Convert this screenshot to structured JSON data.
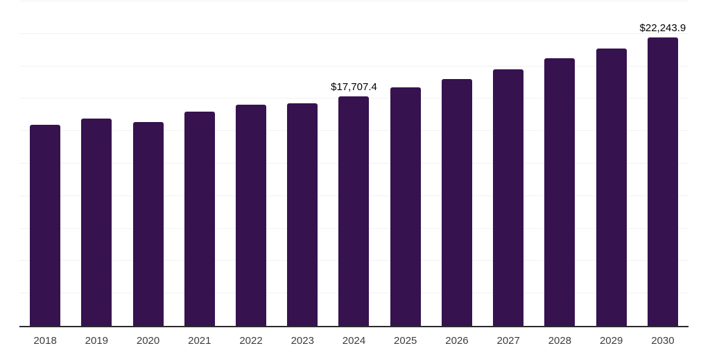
{
  "chart_data": {
    "type": "bar",
    "title": "",
    "xlabel": "",
    "ylabel": "",
    "categories": [
      "2018",
      "2019",
      "2020",
      "2021",
      "2022",
      "2023",
      "2024",
      "2025",
      "2026",
      "2027",
      "2028",
      "2029",
      "2030"
    ],
    "values": [
      15500,
      15980,
      15680,
      16500,
      17050,
      17170,
      17707.4,
      18400,
      19000,
      19780,
      20630,
      21380,
      22243.9
    ],
    "annotations": [
      {
        "category": "2024",
        "text": "$17,707.4"
      },
      {
        "category": "2030",
        "text": "$22,243.9"
      }
    ],
    "ylim": [
      0,
      25000
    ],
    "gridline_step": 2500,
    "grid": true,
    "legend": false,
    "colors": {
      "bar": "#36124F",
      "gridline": "#f2f2f2",
      "axis_line": "#2b2b2b",
      "tick_label": "#3d3d3d",
      "annotation_text": "#000000",
      "background": "#ffffff"
    }
  }
}
